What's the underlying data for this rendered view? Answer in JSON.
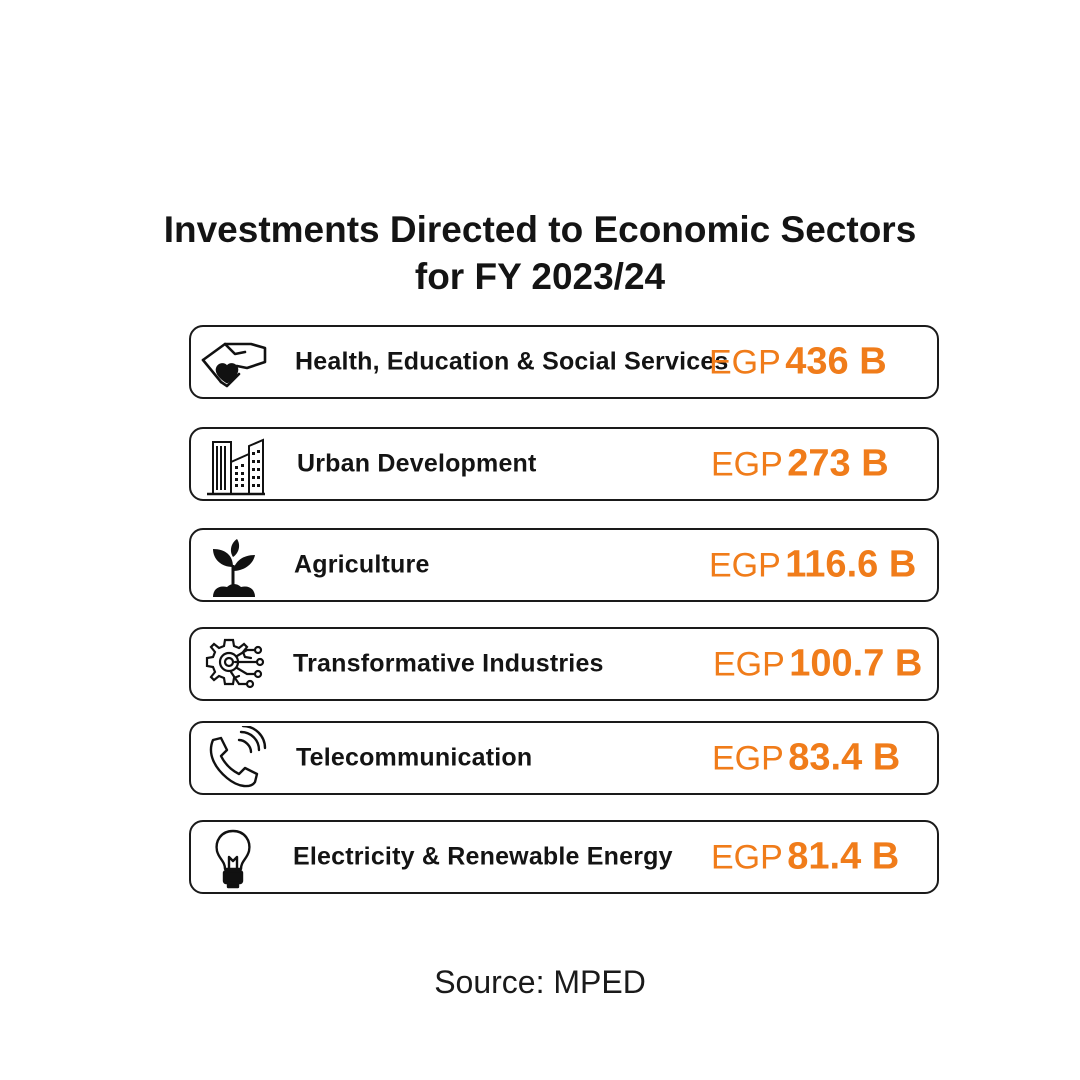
{
  "title": {
    "line1": "Investments Directed to Economic Sectors",
    "line2": "for FY 2023/24"
  },
  "currency": "EGP",
  "accent_color": "#f07c1a",
  "sectors": [
    {
      "label": "Health, Education & Social Services",
      "value": "436 B",
      "icon": "hand-heart-icon"
    },
    {
      "label": "Urban Development",
      "value": "273 B",
      "icon": "buildings-icon"
    },
    {
      "label": "Agriculture",
      "value": "116.6 B",
      "icon": "sprout-icon"
    },
    {
      "label": "Transformative Industries",
      "value": "100.7 B",
      "icon": "gear-circuit-icon"
    },
    {
      "label": "Telecommunication",
      "value": "83.4 B",
      "icon": "phone-signal-icon"
    },
    {
      "label": "Electricity & Renewable Energy",
      "value": "81.4 B",
      "icon": "lightbulb-icon"
    }
  ],
  "source": "Source: MPED"
}
